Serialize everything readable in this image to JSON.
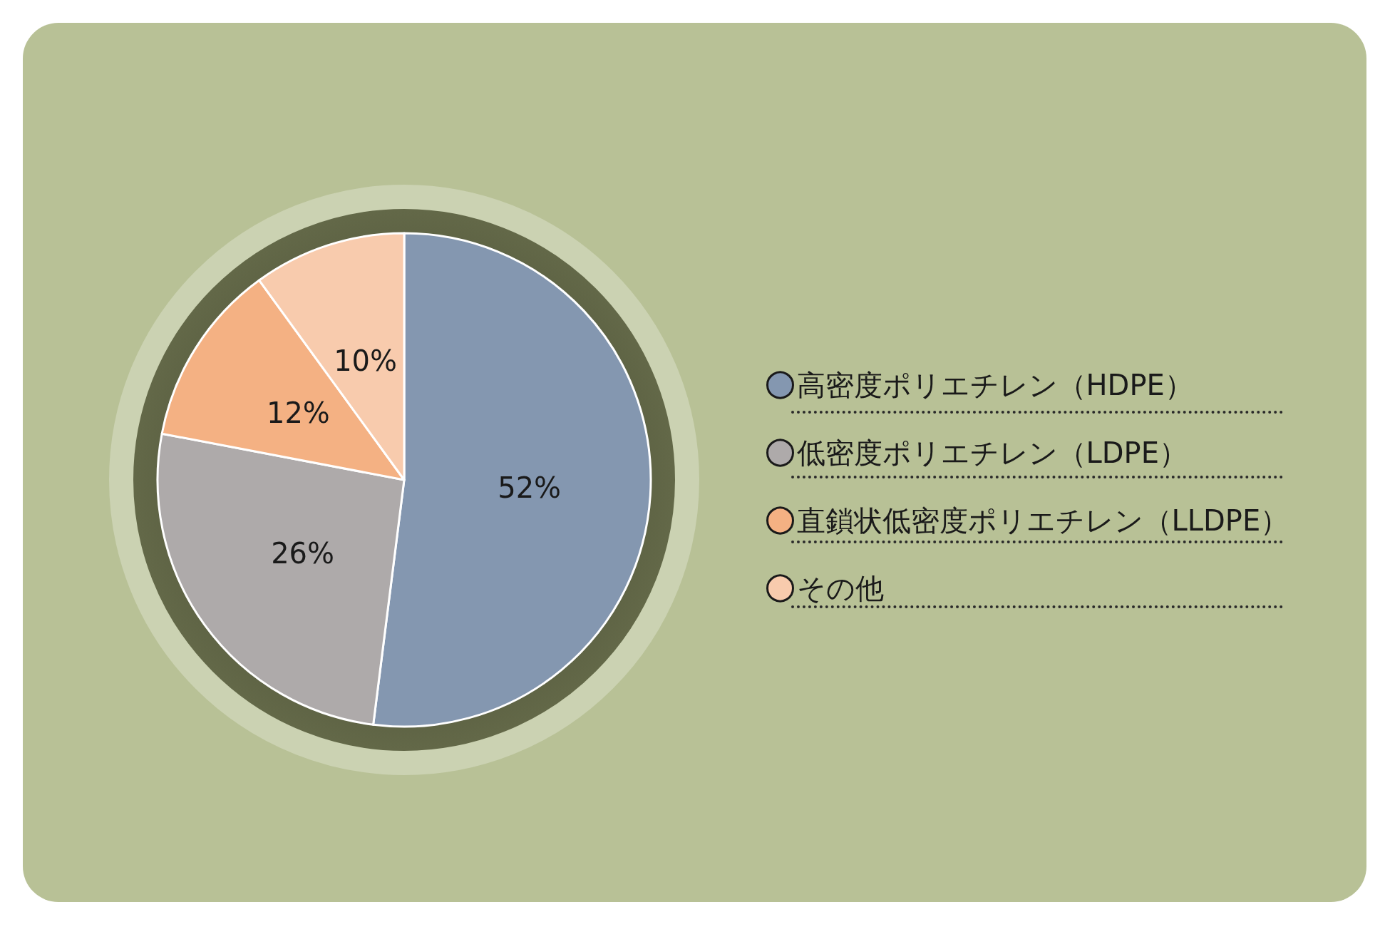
{
  "chart_data": {
    "type": "pie",
    "categories": [
      "高密度ポリエチレン（HDPE）",
      "低密度ポリエチレン（LDPE）",
      "直鎖状低密度ポリエチレン（LLDPE）",
      "その他"
    ],
    "values": [
      52,
      26,
      12,
      10
    ],
    "colors": [
      "#8497b0",
      "#aeaaaa",
      "#f4b183",
      "#f8cbad"
    ],
    "value_labels": [
      "52%",
      "26%",
      "12%",
      "10%"
    ],
    "legend": "right"
  }
}
